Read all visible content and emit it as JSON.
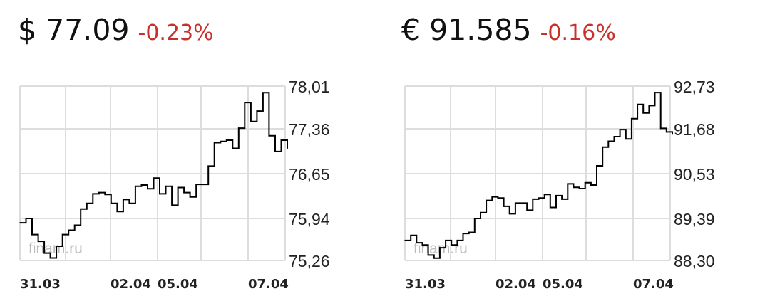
{
  "quotes": [
    {
      "price": "$ 77.09",
      "change": "-0.23%"
    },
    {
      "price": "€ 91.585",
      "change": "-0.16%"
    }
  ],
  "colors": {
    "negative": "#c8302c",
    "line": "#000000",
    "grid": "#dddddd"
  },
  "watermark": "finam.ru",
  "chart_data": [
    {
      "type": "line",
      "title": "",
      "currency": "USD",
      "y_ticks": [
        "78,01",
        "77,36",
        "76,65",
        "75,94",
        "75,26"
      ],
      "y_tick_values": [
        78.01,
        77.36,
        76.65,
        75.94,
        75.26
      ],
      "ylim": [
        75.26,
        78.01
      ],
      "x_ticks": [
        "31.03",
        "02.04",
        "05.04",
        "07.04"
      ],
      "grid": true,
      "values": [
        75.87,
        75.94,
        75.68,
        75.57,
        75.38,
        75.3,
        75.49,
        75.68,
        75.75,
        75.83,
        76.09,
        76.18,
        76.33,
        76.35,
        76.32,
        76.18,
        76.05,
        76.24,
        76.18,
        76.45,
        76.47,
        76.41,
        76.58,
        76.33,
        76.45,
        76.15,
        76.43,
        76.35,
        76.28,
        76.48,
        76.48,
        76.77,
        77.14,
        77.16,
        77.18,
        77.05,
        77.37,
        77.76,
        77.47,
        77.63,
        77.91,
        77.25,
        77.0,
        77.18,
        77.05
      ]
    },
    {
      "type": "line",
      "title": "",
      "currency": "EUR",
      "y_ticks": [
        "92,73",
        "91,68",
        "90,53",
        "89,39",
        "88,30"
      ],
      "y_tick_values": [
        92.73,
        91.68,
        90.53,
        89.39,
        88.3
      ],
      "ylim": [
        88.3,
        92.73
      ],
      "x_ticks": [
        "31.03",
        "02.04",
        "05.04",
        "07.04"
      ],
      "grid": true,
      "values": [
        88.82,
        88.95,
        88.76,
        88.7,
        88.44,
        88.36,
        88.63,
        88.82,
        88.7,
        88.82,
        89.0,
        89.03,
        89.39,
        89.54,
        89.85,
        89.94,
        89.91,
        89.7,
        89.51,
        89.78,
        89.78,
        89.6,
        89.88,
        89.91,
        90.0,
        89.67,
        89.97,
        89.88,
        90.27,
        90.18,
        90.15,
        90.3,
        90.24,
        90.73,
        91.21,
        91.36,
        91.48,
        91.66,
        91.42,
        91.93,
        92.28,
        92.07,
        92.25,
        92.57,
        91.69,
        91.6,
        91.54
      ]
    }
  ]
}
